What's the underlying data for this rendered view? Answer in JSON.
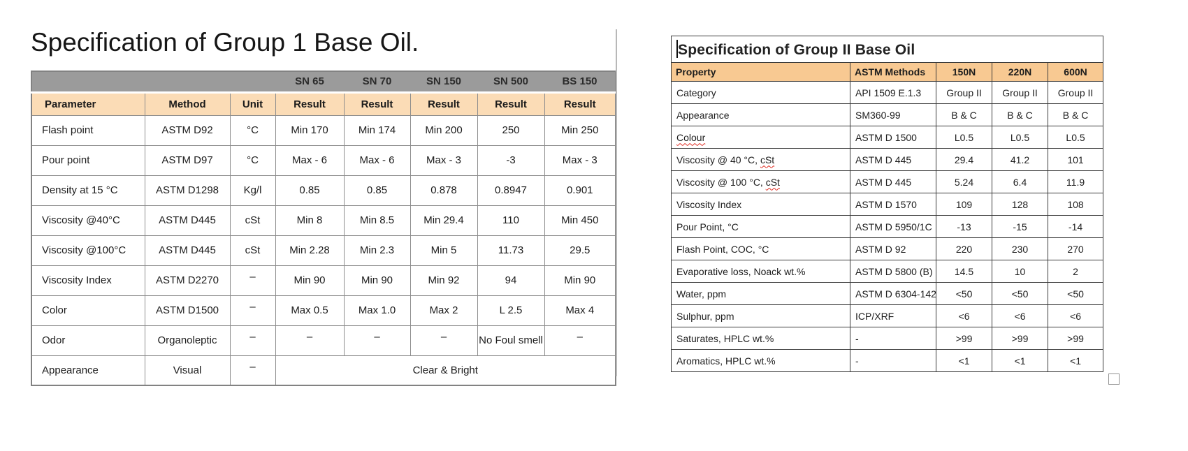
{
  "colors": {
    "grade_header_bg": "#9b9b9b",
    "left_header_bg": "#fbdcb6",
    "left_border": "#8d8d8d",
    "right_header_bg": "#f8c992",
    "squiggle_red": "#e02b20",
    "divider_gray": "#b8b8b8"
  },
  "left_panel": {
    "title": "Specification of Group 1 Base Oil.",
    "table": {
      "grade_header": [
        "",
        "",
        "",
        "SN 65",
        "SN 70",
        "SN 150",
        "SN 500",
        "BS 150"
      ],
      "column_header": [
        "Parameter",
        "Method",
        "Unit",
        "Result",
        "Result",
        "Result",
        "Result",
        "Result"
      ],
      "rows": [
        [
          "Flash point",
          "ASTM D92",
          "°C",
          "Min 170",
          "Min 174",
          "Min 200",
          "250",
          "Min 250"
        ],
        [
          "Pour point",
          "ASTM D97",
          "°C",
          "Max - 6",
          "Max - 6",
          "Max - 3",
          "-3",
          "Max - 3"
        ],
        [
          "Density at 15 °C",
          "ASTM D1298",
          "Kg/l",
          "0.85",
          "0.85",
          "0.878",
          "0.8947",
          "0.901"
        ],
        [
          "Viscosity @40°C",
          "ASTM D445",
          "cSt",
          "Min 8",
          "Min 8.5",
          "Min 29.4",
          "110",
          "Min 450"
        ],
        [
          "Viscosity @100°C",
          "ASTM D445",
          "cSt",
          "Min 2.28",
          "Min 2.3",
          "Min 5",
          "11.73",
          "29.5"
        ],
        [
          "Viscosity Index",
          "ASTM D2270",
          "–",
          "Min 90",
          "Min 90",
          "Min 92",
          "94",
          "Min 90"
        ],
        [
          "Color",
          "ASTM D1500",
          "–",
          "Max 0.5",
          "Max 1.0",
          "Max 2",
          "L 2.5",
          "Max 4"
        ],
        [
          "Odor",
          "Organoleptic",
          "–",
          "–",
          "–",
          "–",
          "No Foul smell",
          "–"
        ],
        [
          "Appearance",
          "Visual",
          "–",
          {
            "text": "Clear & Bright",
            "colspan": 5
          }
        ]
      ]
    }
  },
  "right_panel": {
    "title": "Specification of Group II Base Oil",
    "table": {
      "header": [
        "Property",
        "ASTM Methods",
        "150N",
        "220N",
        "600N"
      ],
      "misspelled_words": [
        "Colour",
        "cSt"
      ],
      "rows": [
        [
          "Category",
          "API 1509 E.1.3",
          "Group II",
          "Group II",
          "Group II"
        ],
        [
          "Appearance",
          "SM360-99",
          "B & C",
          "B & C",
          "B & C"
        ],
        [
          "Colour",
          "ASTM D 1500",
          "L0.5",
          "L0.5",
          "L0.5"
        ],
        [
          "Viscosity @ 40 °C, cSt",
          "ASTM D 445",
          "29.4",
          "41.2",
          "101"
        ],
        [
          "Viscosity @ 100 °C, cSt",
          "ASTM D 445",
          "5.24",
          "6.4",
          "11.9"
        ],
        [
          "Viscosity Index",
          "ASTM D 1570",
          "109",
          "128",
          "108"
        ],
        [
          "Pour Point, °C",
          "ASTM D 5950/1C",
          "-13",
          "-15",
          "-14"
        ],
        [
          "Flash Point, COC, °C",
          "ASTM D 92",
          "220",
          "230",
          "270"
        ],
        [
          "Evaporative loss, Noack wt.%",
          "ASTM D 5800 (B)",
          "14.5",
          "10",
          "2"
        ],
        [
          "Water, ppm",
          "ASTM D 6304-142",
          "<50",
          "<50",
          "<50"
        ],
        [
          "Sulphur, ppm",
          "ICP/XRF",
          "<6",
          "<6",
          "<6"
        ],
        [
          "Saturates, HPLC wt.%",
          "-",
          ">99",
          ">99",
          ">99"
        ],
        [
          "Aromatics, HPLC wt.%",
          "-",
          "<1",
          "<1",
          "<1"
        ]
      ]
    }
  }
}
